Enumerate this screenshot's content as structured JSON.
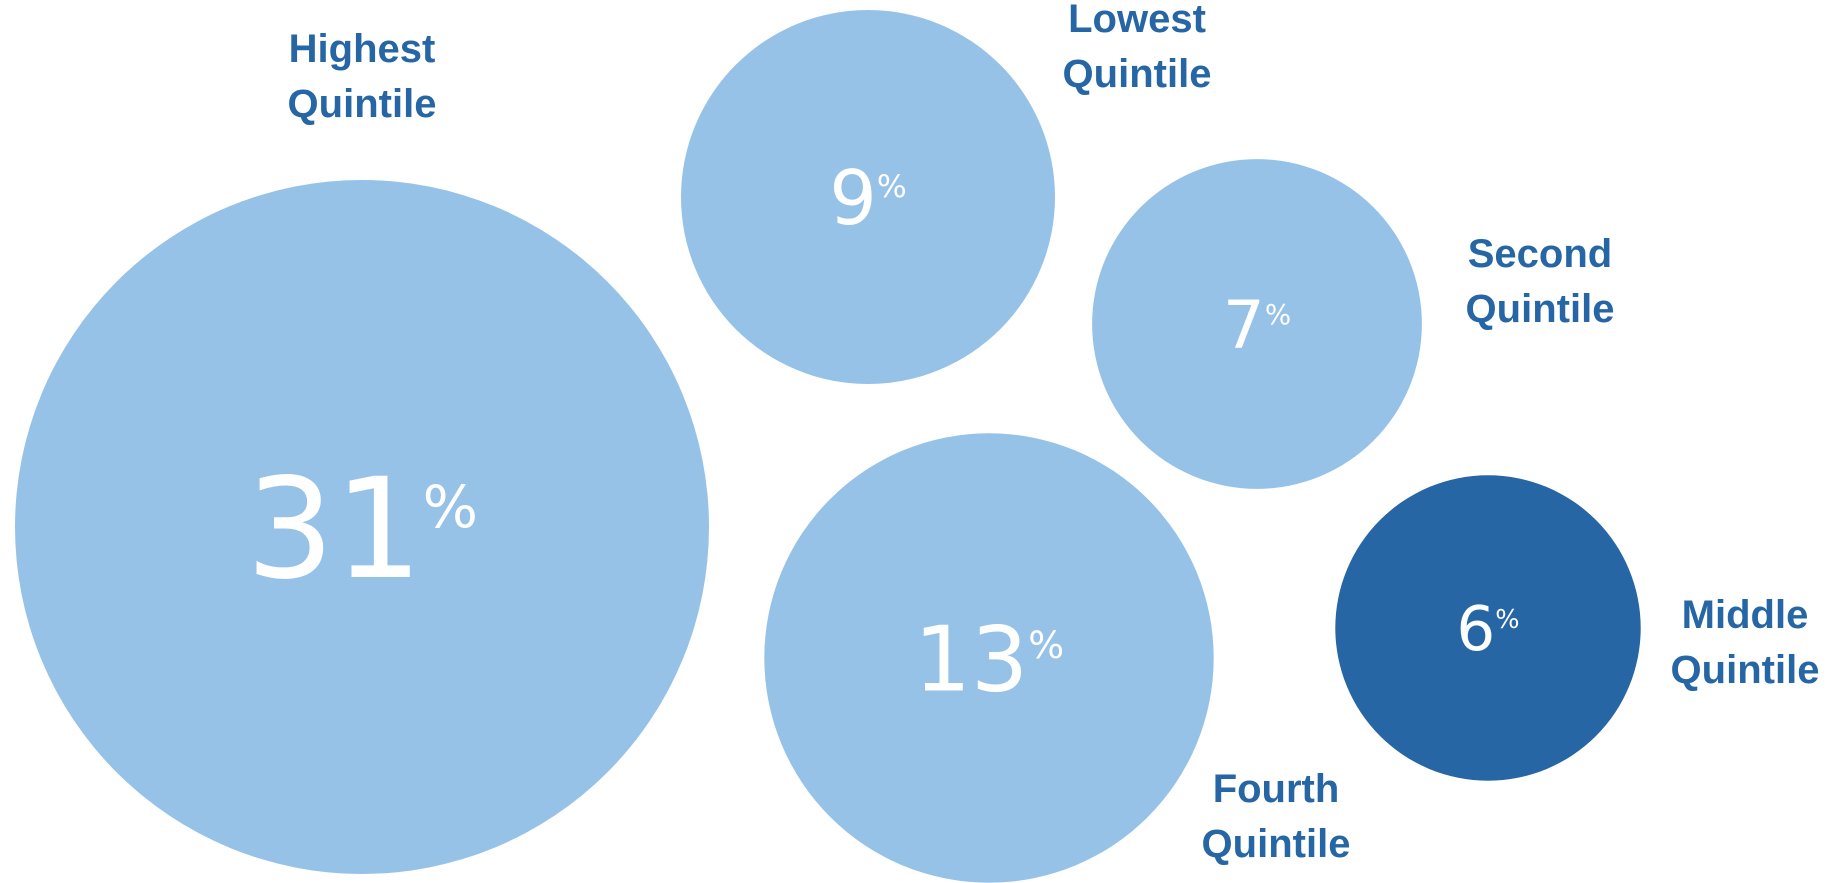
{
  "chart_data": {
    "type": "bubble",
    "unit": "%",
    "colors": {
      "bubble": "#96c2e8",
      "highlight": "#2666a4",
      "label": "#2666a4",
      "value_text": "#ffffff"
    },
    "items": [
      {
        "label_lines": [
          "Highest",
          "Quintile"
        ],
        "value": 31,
        "highlight": false
      },
      {
        "label_lines": [
          "Lowest",
          "Quintile"
        ],
        "value": 9,
        "highlight": false
      },
      {
        "label_lines": [
          "Second",
          "Quintile"
        ],
        "value": 7,
        "highlight": false
      },
      {
        "label_lines": [
          "Fourth",
          "Quintile"
        ],
        "value": 13,
        "highlight": false
      },
      {
        "label_lines": [
          "Middle",
          "Quintile"
        ],
        "value": 6,
        "highlight": true
      }
    ]
  }
}
